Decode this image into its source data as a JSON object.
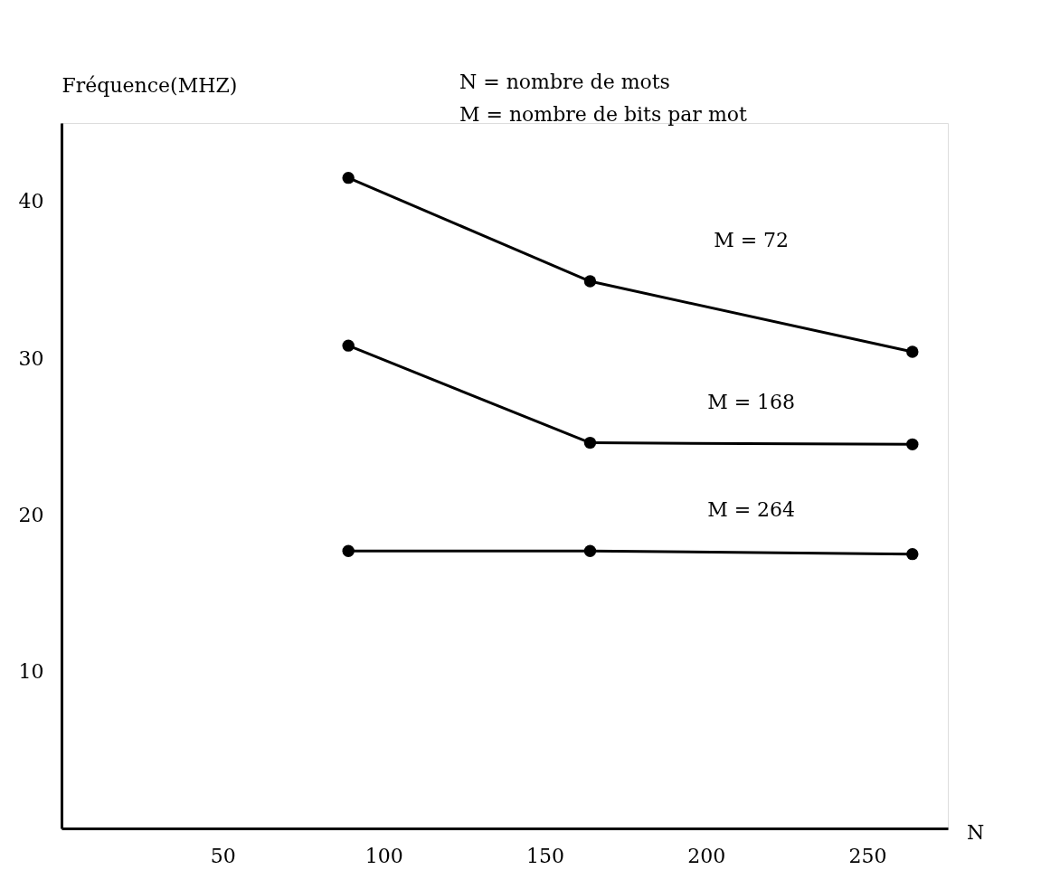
{
  "chart_data": {
    "type": "line",
    "xlabel": "N",
    "ylabel": "Fréquence(MHZ)",
    "x": [
      89,
      164,
      264
    ],
    "series": [
      {
        "name": "M = 72",
        "color": "#000000",
        "values": [
          41.5,
          34.9,
          30.4
        ]
      },
      {
        "name": "M = 168",
        "color": "#000000",
        "values": [
          30.8,
          24.6,
          24.5
        ]
      },
      {
        "name": "M = 264",
        "color": "#000000",
        "values": [
          17.7,
          17.7,
          17.5
        ]
      }
    ],
    "xlim": [
      0,
      275
    ],
    "ylim": [
      0,
      45
    ],
    "xticks": [
      50,
      100,
      150,
      200,
      250
    ],
    "yticks": [
      10,
      20,
      30,
      40
    ],
    "annotations": [
      "N = nombre de mots",
      "M = nombre de bits par mot"
    ],
    "marker": "circle",
    "line_style": "solid",
    "grid": false,
    "legend": false
  }
}
